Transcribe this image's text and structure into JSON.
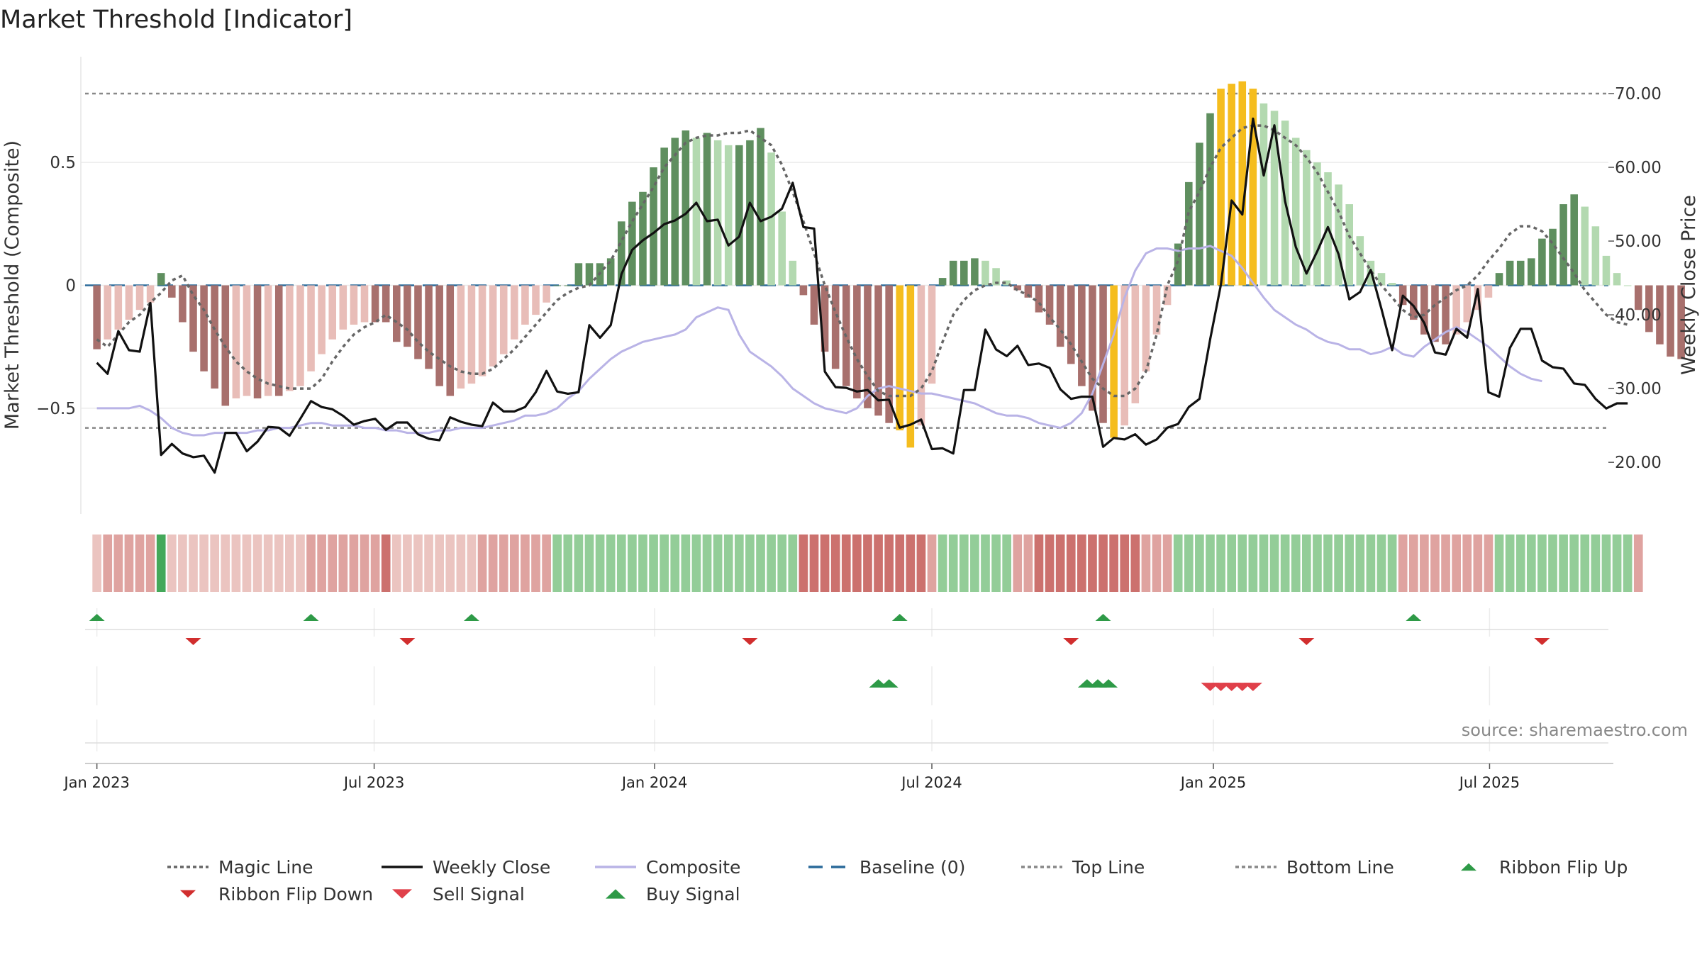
{
  "chart_data": {
    "type": "bar",
    "title": "Market Threshold [Indicator]",
    "ylabel_left": "Market Threshold (Composite)",
    "ylabel_right": "Weekly Close Price",
    "ylim_left": [
      -0.93,
      0.93
    ],
    "ylim_right": [
      13.0,
      75.0
    ],
    "left_ticks": [
      {
        "v": 0.5,
        "label": "0.5"
      },
      {
        "v": 0,
        "label": "0"
      },
      {
        "v": -0.5,
        "label": "−0.5"
      }
    ],
    "right_ticks": [
      {
        "v": 70,
        "label": "70.00"
      },
      {
        "v": 60,
        "label": "60.00"
      },
      {
        "v": 50,
        "label": "50.00"
      },
      {
        "v": 40,
        "label": "40.00"
      },
      {
        "v": 30,
        "label": "30.00"
      },
      {
        "v": 20,
        "label": "20.00"
      }
    ],
    "x_range_weeks": [
      -1.5,
      141.2
    ],
    "x_ticks": [
      {
        "label": "Jan 2023",
        "week": 0
      },
      {
        "label": "Jul 2023",
        "week": 25.9
      },
      {
        "label": "Jan 2024",
        "week": 52.1
      },
      {
        "label": "Jul 2024",
        "week": 78.0
      },
      {
        "label": "Jan 2025",
        "week": 104.3
      },
      {
        "label": "Jul 2025",
        "week": 130.1
      }
    ],
    "top_line": 0.78,
    "bottom_line": -0.58,
    "baseline": 0,
    "composite_bars": [
      -0.26,
      -0.22,
      -0.18,
      -0.14,
      -0.1,
      -0.07,
      0.05,
      -0.05,
      -0.15,
      -0.27,
      -0.35,
      -0.42,
      -0.49,
      -0.46,
      -0.45,
      -0.46,
      -0.45,
      -0.45,
      -0.43,
      -0.41,
      -0.35,
      -0.28,
      -0.22,
      -0.18,
      -0.16,
      -0.15,
      -0.15,
      -0.15,
      -0.23,
      -0.25,
      -0.3,
      -0.34,
      -0.41,
      -0.45,
      -0.42,
      -0.4,
      -0.37,
      -0.33,
      -0.28,
      -0.22,
      -0.16,
      -0.12,
      -0.07,
      0.0,
      0.0,
      0.09,
      0.09,
      0.09,
      0.11,
      0.26,
      0.34,
      0.38,
      0.48,
      0.56,
      0.6,
      0.63,
      0.6,
      0.62,
      0.59,
      0.57,
      0.57,
      0.59,
      0.64,
      0.54,
      0.3,
      0.1,
      -0.04,
      -0.16,
      -0.27,
      -0.34,
      -0.41,
      -0.46,
      -0.5,
      -0.53,
      -0.56,
      -0.59,
      -0.66,
      -0.57,
      -0.4,
      0.03,
      0.1,
      0.1,
      0.11,
      0.1,
      0.07,
      0.02,
      -0.02,
      -0.05,
      -0.11,
      -0.16,
      -0.25,
      -0.32,
      -0.41,
      -0.51,
      -0.56,
      -0.62,
      -0.57,
      -0.48,
      -0.35,
      -0.2,
      -0.08,
      0.17,
      0.42,
      0.58,
      0.7,
      0.8,
      0.82,
      0.83,
      0.8,
      0.74,
      0.71,
      0.67,
      0.6,
      0.55,
      0.5,
      0.46,
      0.41,
      0.33,
      0.2,
      0.1,
      0.05,
      0.01,
      -0.08,
      -0.14,
      -0.2,
      -0.23,
      -0.24,
      -0.2,
      -0.15,
      -0.1,
      -0.05,
      0.05,
      0.1,
      0.1,
      0.11,
      0.19,
      0.23,
      0.33,
      0.37,
      0.32,
      0.24,
      0.12,
      0.05,
      0.0,
      -0.1,
      -0.19,
      -0.24,
      -0.29,
      -0.3
    ],
    "magic_line": [
      -0.22,
      -0.25,
      -0.2,
      -0.15,
      -0.12,
      -0.07,
      -0.03,
      0.02,
      0.04,
      -0.04,
      -0.1,
      -0.18,
      -0.25,
      -0.31,
      -0.35,
      -0.38,
      -0.4,
      -0.41,
      -0.42,
      -0.42,
      -0.42,
      -0.38,
      -0.31,
      -0.25,
      -0.2,
      -0.17,
      -0.15,
      -0.12,
      -0.15,
      -0.18,
      -0.23,
      -0.27,
      -0.3,
      -0.33,
      -0.35,
      -0.36,
      -0.36,
      -0.34,
      -0.3,
      -0.26,
      -0.21,
      -0.16,
      -0.11,
      -0.06,
      -0.03,
      -0.01,
      0.0,
      0.05,
      0.1,
      0.18,
      0.26,
      0.33,
      0.4,
      0.48,
      0.53,
      0.58,
      0.6,
      0.61,
      0.61,
      0.62,
      0.62,
      0.63,
      0.6,
      0.57,
      0.49,
      0.38,
      0.26,
      0.13,
      0.0,
      -0.11,
      -0.21,
      -0.3,
      -0.37,
      -0.43,
      -0.45,
      -0.45,
      -0.45,
      -0.42,
      -0.35,
      -0.23,
      -0.12,
      -0.06,
      -0.02,
      0.0,
      0.01,
      0.01,
      -0.02,
      -0.04,
      -0.07,
      -0.13,
      -0.18,
      -0.24,
      -0.31,
      -0.38,
      -0.42,
      -0.45,
      -0.45,
      -0.42,
      -0.35,
      -0.2,
      0.0,
      0.1,
      0.3,
      0.38,
      0.48,
      0.56,
      0.6,
      0.64,
      0.65,
      0.65,
      0.63,
      0.6,
      0.57,
      0.52,
      0.46,
      0.38,
      0.3,
      0.2,
      0.13,
      0.06,
      0.0,
      -0.05,
      -0.1,
      -0.13,
      -0.12,
      -0.08,
      -0.05,
      -0.02,
      0.0,
      0.04,
      0.1,
      0.15,
      0.21,
      0.24,
      0.24,
      0.22,
      0.17,
      0.11,
      0.05,
      -0.02,
      -0.07,
      -0.12,
      -0.15,
      -0.16
    ],
    "composite_line": [
      -0.5,
      -0.5,
      -0.5,
      -0.5,
      -0.49,
      -0.51,
      -0.54,
      -0.58,
      -0.6,
      -0.61,
      -0.61,
      -0.6,
      -0.6,
      -0.6,
      -0.6,
      -0.59,
      -0.59,
      -0.58,
      -0.58,
      -0.57,
      -0.56,
      -0.56,
      -0.57,
      -0.57,
      -0.57,
      -0.58,
      -0.58,
      -0.59,
      -0.59,
      -0.6,
      -0.6,
      -0.6,
      -0.59,
      -0.59,
      -0.58,
      -0.58,
      -0.58,
      -0.57,
      -0.56,
      -0.55,
      -0.53,
      -0.53,
      -0.52,
      -0.5,
      -0.46,
      -0.43,
      -0.38,
      -0.34,
      -0.3,
      -0.27,
      -0.25,
      -0.23,
      -0.22,
      -0.21,
      -0.2,
      -0.18,
      -0.13,
      -0.11,
      -0.09,
      -0.1,
      -0.2,
      -0.27,
      -0.3,
      -0.33,
      -0.37,
      -0.42,
      -0.45,
      -0.48,
      -0.5,
      -0.51,
      -0.52,
      -0.5,
      -0.45,
      -0.42,
      -0.41,
      -0.42,
      -0.43,
      -0.44,
      -0.44,
      -0.45,
      -0.46,
      -0.47,
      -0.48,
      -0.5,
      -0.52,
      -0.53,
      -0.53,
      -0.54,
      -0.56,
      -0.57,
      -0.58,
      -0.56,
      -0.52,
      -0.44,
      -0.32,
      -0.2,
      -0.05,
      0.06,
      0.13,
      0.15,
      0.15,
      0.14,
      0.15,
      0.15,
      0.16,
      0.14,
      0.12,
      0.07,
      0.01,
      -0.05,
      -0.1,
      -0.13,
      -0.16,
      -0.18,
      -0.21,
      -0.23,
      -0.24,
      -0.26,
      -0.26,
      -0.28,
      -0.27,
      -0.25,
      -0.28,
      -0.29,
      -0.25,
      -0.22,
      -0.19,
      -0.17,
      -0.19,
      -0.22,
      -0.25,
      -0.29,
      -0.33,
      -0.36,
      -0.38,
      -0.39
    ],
    "weekly_close": [
      33.5,
      32,
      37.8,
      35.2,
      35,
      41.6,
      21,
      22.5,
      21.2,
      20.7,
      20.9,
      18.6,
      24,
      24,
      21.5,
      22.8,
      24.8,
      24.7,
      23.6,
      25.9,
      28.3,
      27.5,
      27.2,
      26.3,
      25.1,
      25.6,
      25.9,
      24.4,
      25.4,
      25.4,
      23.8,
      23.2,
      23,
      26.1,
      25.5,
      25.1,
      24.9,
      28.1,
      26.9,
      26.9,
      27.5,
      29.5,
      32.4,
      29.6,
      29.3,
      29.5,
      38.6,
      36.9,
      38.6,
      45.5,
      48.8,
      50.1,
      51.1,
      52.3,
      52.8,
      53.7,
      55.2,
      52.7,
      52.9,
      49.4,
      50.6,
      55.2,
      52.7,
      53.3,
      54.4,
      57.9,
      51.9,
      51.7,
      32.3,
      30.2,
      30.1,
      29.6,
      29.8,
      28.4,
      28.5,
      24.7,
      25.1,
      25.8,
      21.8,
      21.9,
      21.2,
      29.8,
      29.8,
      38,
      35.3,
      34.4,
      35.8,
      33.2,
      33.4,
      32.8,
      29.9,
      28.6,
      28.9,
      28.9,
      22.1,
      23.3,
      23.1,
      23.8,
      22.4,
      23.1,
      24.7,
      25.2,
      27.5,
      28.6,
      36.7,
      44.1,
      55.5,
      53.6,
      66.6,
      58.9,
      65.7,
      55.4,
      49.2,
      45.6,
      48.6,
      51.9,
      48.2,
      42.1,
      43.1,
      46.1,
      40.8,
      35.2,
      42.6,
      41.2,
      38.9,
      34.9,
      34.6,
      38.1,
      36.9,
      43.5,
      29.5,
      28.9,
      35.5,
      38.1,
      38.1,
      33.8,
      32.9,
      32.7,
      30.7,
      30.5,
      28.6,
      27.3,
      28,
      28
    ],
    "ribbon_shades": [
      1,
      2,
      2,
      2,
      2,
      2,
      3,
      1,
      1,
      1,
      1,
      1,
      1,
      1,
      1,
      1,
      1,
      1,
      1,
      1,
      2,
      2,
      2,
      2,
      2,
      2,
      2,
      3,
      1,
      1,
      1,
      1,
      1,
      1,
      1,
      1,
      2,
      2,
      2,
      2,
      2,
      2,
      2,
      2,
      2,
      2,
      2,
      2,
      2,
      2,
      2,
      2,
      2,
      2,
      2,
      2,
      2,
      2,
      2,
      2,
      2,
      2,
      2,
      2,
      2,
      2,
      3,
      3,
      3,
      3,
      3,
      3,
      3,
      3,
      3,
      3,
      3,
      3,
      2,
      2,
      2,
      2,
      2,
      2,
      2,
      2,
      2,
      2,
      3,
      3,
      3,
      3,
      3,
      3,
      3,
      3,
      3,
      3,
      2,
      2,
      2,
      2,
      2,
      2,
      2,
      2,
      2,
      2,
      2,
      2,
      2,
      2,
      2,
      2,
      2,
      2,
      2,
      2,
      2,
      2,
      2,
      2,
      2,
      2,
      2,
      2,
      2,
      2,
      2,
      2,
      2,
      2,
      2,
      2,
      2,
      2,
      2,
      2,
      2,
      2,
      2,
      2,
      2,
      2,
      2
    ],
    "ribbon_flip_up_weeks": [
      0,
      20,
      35,
      75,
      94,
      123
    ],
    "ribbon_flip_down_weeks": [
      9,
      29,
      61,
      91,
      113,
      135
    ],
    "buy_signal_weeks": [
      73,
      74,
      92.5,
      93.5,
      94.5
    ],
    "sell_signal_weeks": [
      104,
      105,
      106,
      107,
      108
    ],
    "source_note": "source: sharemaestro.com",
    "legend": [
      {
        "label": "Magic Line",
        "kind": "dotted",
        "color": "#666666"
      },
      {
        "label": "Weekly Close",
        "kind": "solid",
        "color": "#111111"
      },
      {
        "label": "Composite",
        "kind": "solid",
        "color": "#b9b3e6"
      },
      {
        "label": "Baseline (0)",
        "kind": "dashed",
        "color": "#2a6a9a"
      },
      {
        "label": "Top Line",
        "kind": "dotted",
        "color": "#888888"
      },
      {
        "label": "Bottom Line",
        "kind": "dotted",
        "color": "#888888"
      },
      {
        "label": "Ribbon Flip Up",
        "kind": "tri-up",
        "color": "#2e9a47"
      },
      {
        "label": "Ribbon Flip Down",
        "kind": "tri-down",
        "color": "#d12e2e"
      },
      {
        "label": "Sell Signal",
        "kind": "tri-down-big",
        "color": "#e0404a"
      },
      {
        "label": "Buy Signal",
        "kind": "tri-up-big",
        "color": "#2e9a47"
      }
    ],
    "colors": {
      "green_strong": "#5f8f5f",
      "green_light": "#b3d9b0",
      "red_strong": "#a8706d",
      "red_light": "#e8bdb8",
      "extreme": "#f5bd1e",
      "magic": "#666666",
      "close": "#111111",
      "composite": "#b9b3e6",
      "baseline": "#2a6a9a",
      "threshold": "#888888"
    }
  }
}
